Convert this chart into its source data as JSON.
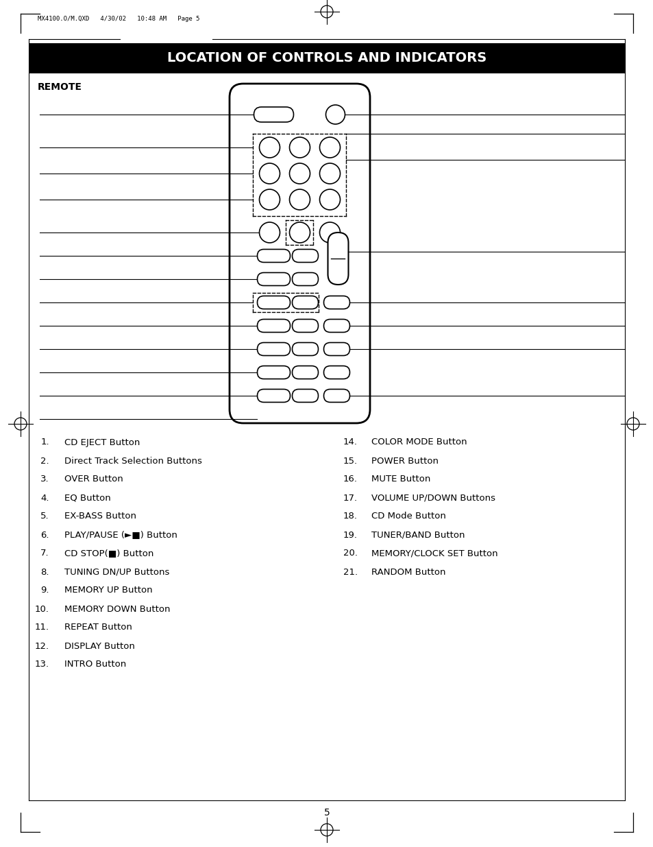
{
  "title": "LOCATION OF CONTROLS AND INDICATORS",
  "title_bg": "#000000",
  "title_color": "#ffffff",
  "header_text": "MX4100.O/M.QXD   4/30/02   10:48 AM   Page 5",
  "remote_label": "REMOTE",
  "page_number": "5",
  "left_items": [
    [
      1,
      "CD EJECT Button"
    ],
    [
      2,
      "Direct Track Selection Buttons"
    ],
    [
      3,
      "OVER Button"
    ],
    [
      4,
      "EQ Button"
    ],
    [
      5,
      "EX-BASS Button"
    ],
    [
      6,
      "PLAY/PAUSE (►■) Button"
    ],
    [
      7,
      "CD STOP(■) Button"
    ],
    [
      8,
      "TUNING DN/UP Buttons"
    ],
    [
      9,
      "MEMORY UP Button"
    ],
    [
      10,
      "MEMORY DOWN Button"
    ],
    [
      11,
      "REPEAT Button"
    ],
    [
      12,
      "DISPLAY Button"
    ],
    [
      13,
      "INTRO Button"
    ]
  ],
  "right_items": [
    [
      14,
      "COLOR MODE Button"
    ],
    [
      15,
      "POWER Button"
    ],
    [
      16,
      "MUTE Button"
    ],
    [
      17,
      "VOLUME UP/DOWN Buttons"
    ],
    [
      18,
      "CD Mode Button"
    ],
    [
      19,
      "TUNER/BAND Button"
    ],
    [
      20,
      "MEMORY/CLOCK SET Button"
    ],
    [
      21,
      "RANDOM Button"
    ]
  ],
  "bg_color": "#ffffff",
  "text_color": "#000000"
}
